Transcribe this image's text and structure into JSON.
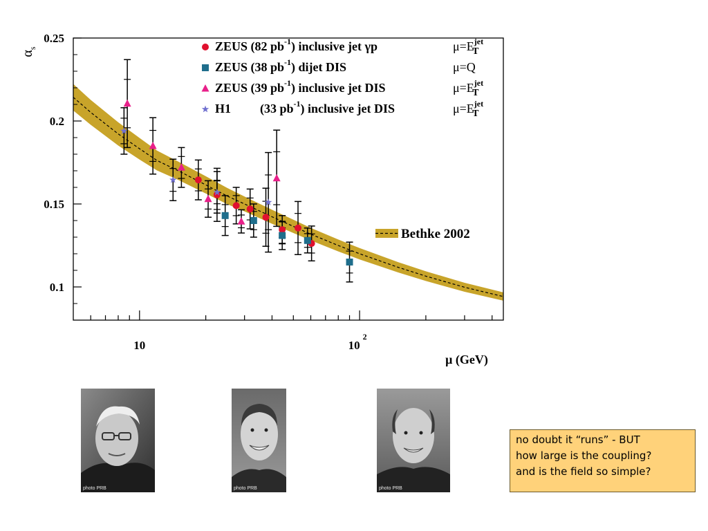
{
  "chart_data": {
    "type": "scatter",
    "x_scale": "log",
    "xlim": [
      5,
      450
    ],
    "ylim": [
      0.08,
      0.25
    ],
    "y_ticks": [
      0.1,
      0.15,
      0.2,
      0.25
    ],
    "y_tick_labels": [
      "0.1",
      "0.15",
      "0.2",
      "0.25"
    ],
    "x_tick_labels": [
      {
        "text": "10",
        "x": 10
      },
      {
        "text": "10",
        "sup": "2",
        "x": 100
      }
    ],
    "ylabel": "α",
    "ylabel_sub": "s",
    "xlabel": "μ (GeV)",
    "band": {
      "name": "Bethke 2002",
      "color": "#c8a42a",
      "x": [
        5,
        6,
        8,
        10,
        12,
        15,
        20,
        25,
        30,
        40,
        50,
        60,
        80,
        100,
        150,
        200,
        300,
        450
      ],
      "center": [
        0.2143,
        0.2052,
        0.1922,
        0.1833,
        0.1762,
        0.17,
        0.1615,
        0.1548,
        0.15,
        0.1423,
        0.1365,
        0.1318,
        0.125,
        0.12,
        0.1118,
        0.1065,
        0.0998,
        0.0942
      ],
      "half_width": [
        0.008,
        0.0075,
        0.007,
        0.0065,
        0.006,
        0.0055,
        0.0052,
        0.0049,
        0.0045,
        0.0042,
        0.004,
        0.0038,
        0.0036,
        0.0034,
        0.0031,
        0.0029,
        0.0027,
        0.0025
      ]
    },
    "series": [
      {
        "label": "ZEUS (82 pb",
        "lumi_sup": "-1",
        "process": ")  inclusive jet γp",
        "scale": "μ=E",
        "scale_sup": "jet",
        "scale_sub": "T",
        "marker": "circle",
        "color": "#e0102e",
        "points": [
          [
            18.5,
            0.1645,
            0.012
          ],
          [
            22.5,
            0.1555,
            0.016
          ],
          [
            27.5,
            0.149,
            0.011
          ],
          [
            31.8,
            0.147,
            0.012
          ],
          [
            37.5,
            0.142,
            0.0175
          ],
          [
            44.5,
            0.1345,
            0.0085
          ],
          [
            52.5,
            0.1355,
            0.016
          ],
          [
            60.5,
            0.1262,
            0.0105
          ]
        ]
      },
      {
        "label": "ZEUS (38 pb",
        "lumi_sup": "-1",
        "process": ")  dijet DIS",
        "scale": "μ=Q",
        "scale_sup": "",
        "scale_sub": "",
        "marker": "square",
        "color": "#1f6e8c",
        "points": [
          [
            24.5,
            0.143,
            0.012
          ],
          [
            33,
            0.14,
            0.01
          ],
          [
            44.5,
            0.131,
            0.0085
          ],
          [
            58,
            0.128,
            0.0075
          ],
          [
            90,
            0.115,
            0.012
          ]
        ]
      },
      {
        "label": "ZEUS (39 pb",
        "lumi_sup": "-1",
        "process": ")  inclusive jet DIS",
        "scale": "μ=E",
        "scale_sup": "jet",
        "scale_sub": "T",
        "marker": "triangle",
        "color": "#e8208a",
        "points": [
          [
            8.8,
            0.2105,
            0.0265
          ],
          [
            11.5,
            0.185,
            0.017
          ],
          [
            15.5,
            0.172,
            0.012
          ],
          [
            20.5,
            0.153,
            0.011
          ],
          [
            29,
            0.1395,
            0.007
          ],
          [
            42,
            0.1655,
            0.029
          ]
        ]
      },
      {
        "label": "H1",
        "lumi_sup": "",
        "process": "(33 pb",
        "process_sup": "-1",
        "process_tail": ")  inclusive jet DIS",
        "scale": "μ=E",
        "scale_sup": "jet",
        "scale_sub": "T",
        "marker": "star",
        "color": "#6f6fcf",
        "points": [
          [
            8.5,
            0.194,
            0.014
          ],
          [
            14.2,
            0.1645,
            0.0125
          ],
          [
            22.5,
            0.157,
            0.0125
          ],
          [
            38.5,
            0.151,
            0.03
          ]
        ]
      }
    ]
  },
  "photos": [
    {
      "credit": "photo PRB"
    },
    {
      "credit": "photo PRB"
    },
    {
      "credit": "photo PRB"
    }
  ],
  "note": {
    "lines": [
      "no doubt it “runs”  - BUT",
      "how large is the coupling?",
      "and is the field so simple?"
    ]
  }
}
